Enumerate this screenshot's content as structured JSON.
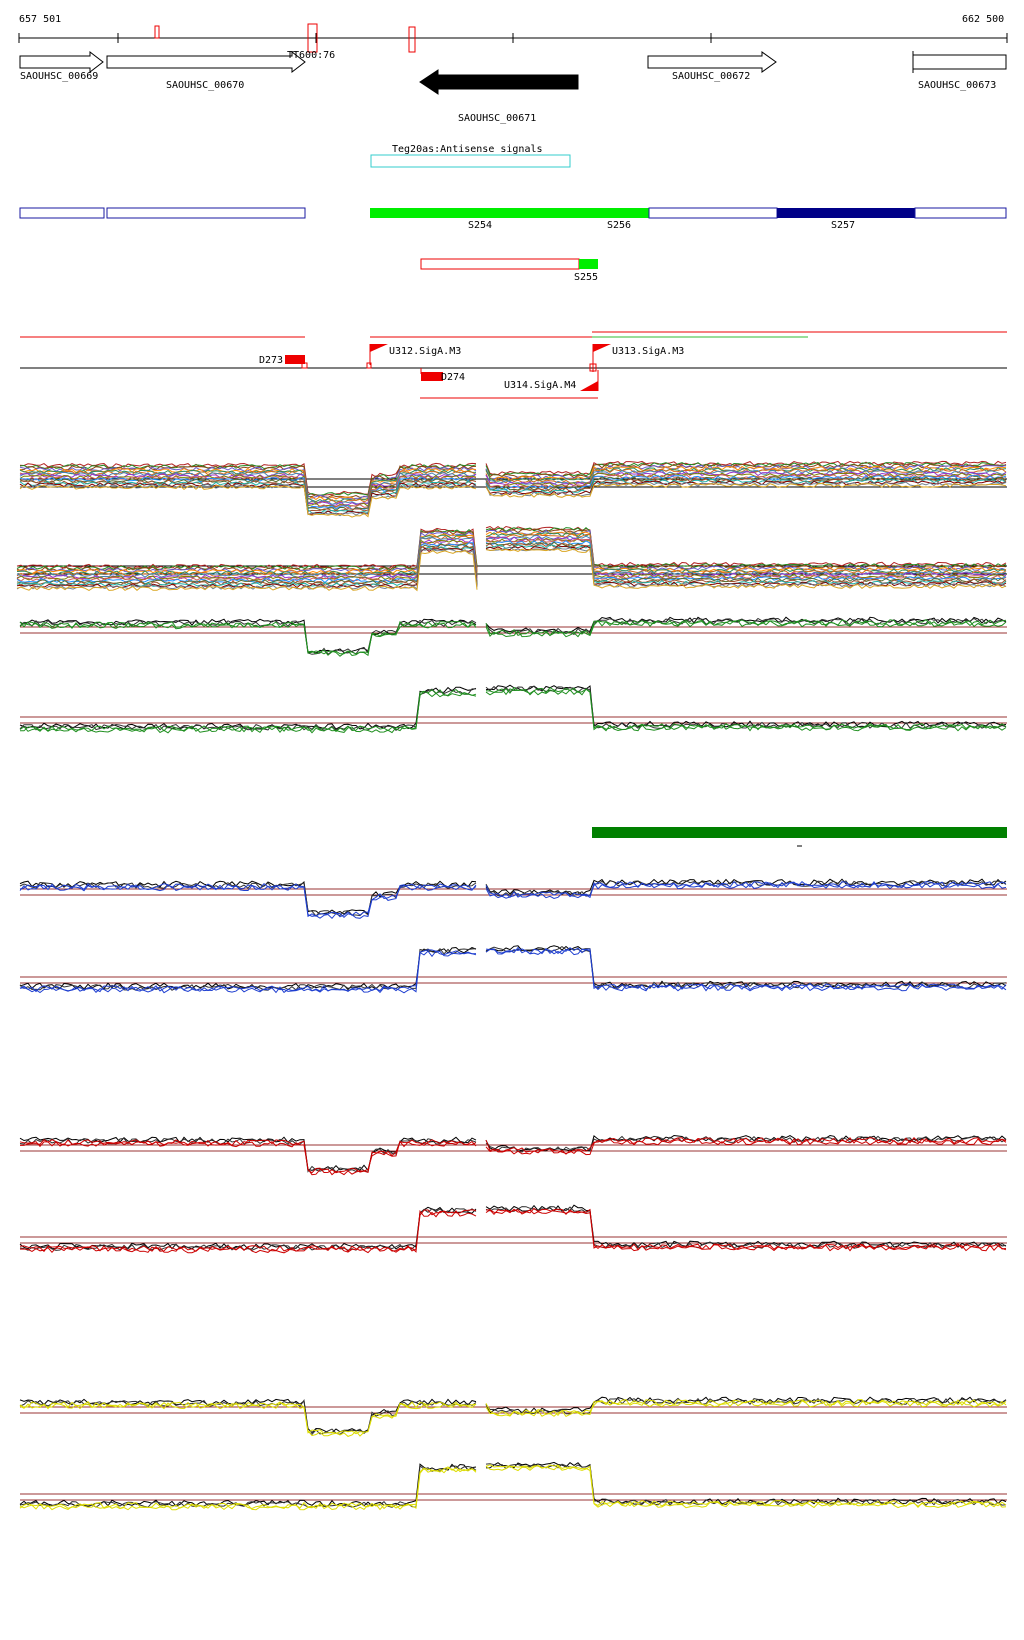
{
  "coords": {
    "start": "657 501",
    "end": "662 500"
  },
  "colors": {
    "gene_outline": "#000000",
    "gene_fill_main": "#000000",
    "antisense_box": "#33cccc",
    "segment_outline": "#1a1aa0",
    "segment_green": "#00ee00",
    "segment_navy": "#000088",
    "red": "#ee0000",
    "dark_green": "#008000",
    "threshold": "#993333",
    "track_blue": "#1f3fd0",
    "track_red": "#cc0000",
    "track_yellow": "#dddd00",
    "track_green": "#1f8f1f"
  },
  "genes": [
    {
      "id": "g669",
      "label": "SAOUHSC_00669",
      "direction": "forward",
      "filled": false
    },
    {
      "id": "g670",
      "label": "SAOUHSC_00670",
      "direction": "forward",
      "filled": false
    },
    {
      "id": "g671",
      "label": "SAOUHSC_00671",
      "direction": "reverse",
      "filled": true
    },
    {
      "id": "g672",
      "label": "SAOUHSC_00672",
      "direction": "forward",
      "filled": false
    },
    {
      "id": "g673",
      "label": "SAOUHSC_00673",
      "direction": "forward",
      "filled": false
    }
  ],
  "terminator_label": "TT600:76",
  "antisense_label": "Teg20as:Antisense signals",
  "segments": [
    {
      "id": "s254",
      "label": "S254"
    },
    {
      "id": "s256",
      "label": "S256"
    },
    {
      "id": "s257",
      "label": "S257"
    },
    {
      "id": "s255",
      "label": "S255"
    }
  ],
  "promoters": [
    {
      "id": "u312",
      "label": "U312.SigA.M3"
    },
    {
      "id": "u313",
      "label": "U313.SigA.M3"
    },
    {
      "id": "u314",
      "label": "U314.SigA.M4"
    }
  ],
  "downshifts": [
    {
      "id": "d273",
      "label": "D273"
    },
    {
      "id": "d274",
      "label": "D274"
    }
  ],
  "expression_tracks": [
    {
      "id": "multi-forward",
      "kind": "multi",
      "color": "#888888",
      "profile": "forward"
    },
    {
      "id": "multi-reverse",
      "kind": "multi",
      "color": "#888888",
      "profile": "reverse"
    },
    {
      "id": "green-forward",
      "kind": "pair",
      "color": "#1f8f1f",
      "profile": "forward"
    },
    {
      "id": "green-reverse",
      "kind": "pair",
      "color": "#1f8f1f",
      "profile": "reverse"
    },
    {
      "id": "blue-forward",
      "kind": "pair",
      "color": "#1f3fd0",
      "profile": "forward"
    },
    {
      "id": "blue-reverse",
      "kind": "pair",
      "color": "#1f3fd0",
      "profile": "reverse"
    },
    {
      "id": "red-forward",
      "kind": "pair",
      "color": "#cc0000",
      "profile": "forward"
    },
    {
      "id": "red-reverse",
      "kind": "pair",
      "color": "#cc0000",
      "profile": "reverse"
    },
    {
      "id": "yellow-forward",
      "kind": "pair",
      "color": "#dddd00",
      "profile": "forward"
    },
    {
      "id": "yellow-reverse",
      "kind": "pair",
      "color": "#dddd00",
      "profile": "reverse"
    }
  ]
}
